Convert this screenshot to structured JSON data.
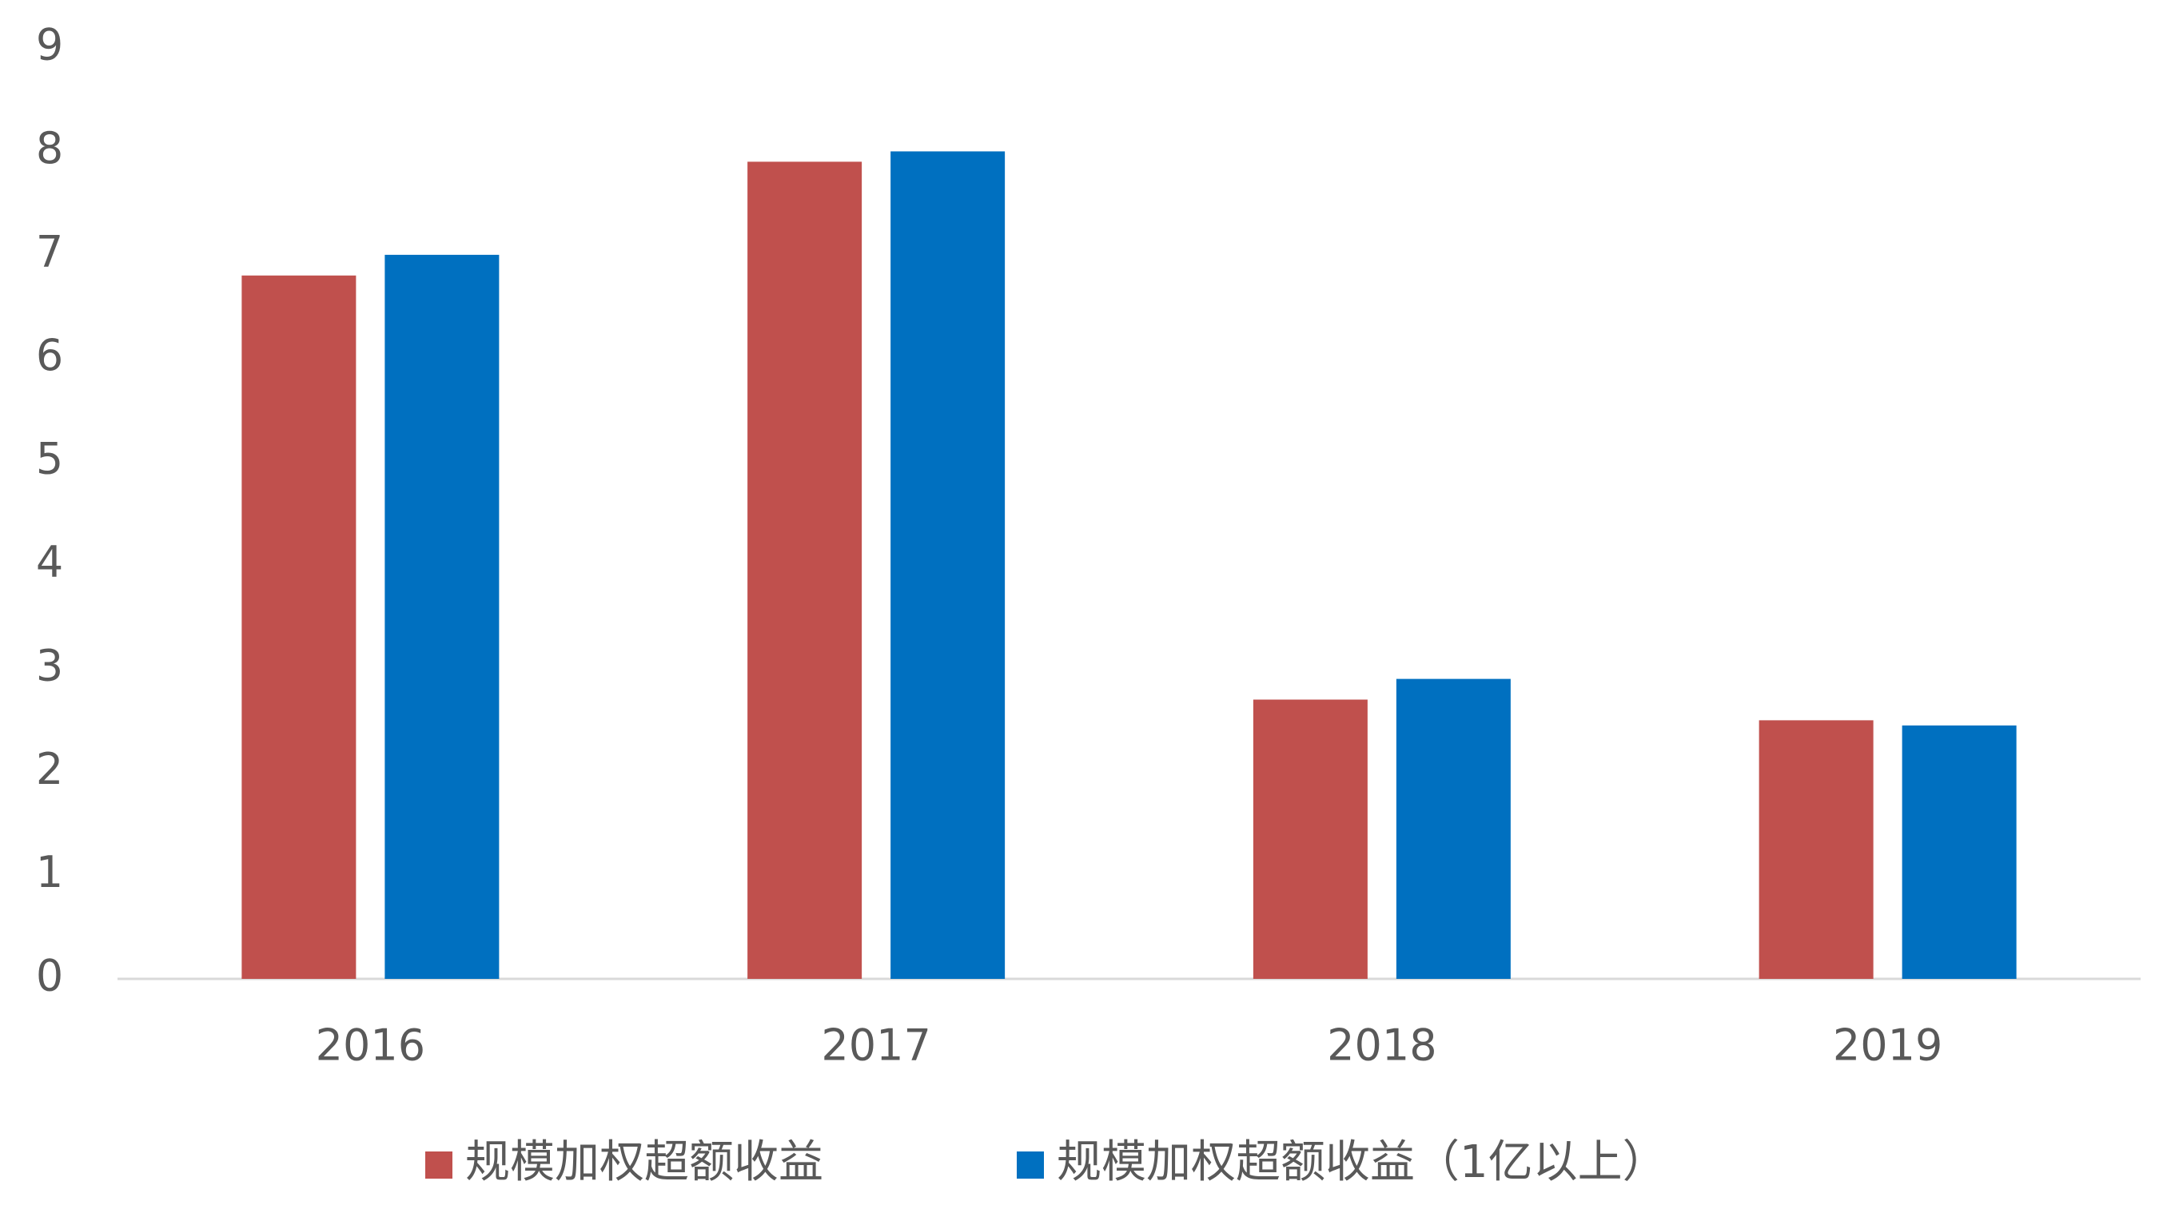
{
  "chart_data": {
    "type": "bar",
    "categories": [
      "2016",
      "2017",
      "2018",
      "2019"
    ],
    "series": [
      {
        "name": "规模加权超额收益",
        "color": "#c0504d",
        "values": [
          6.8,
          7.9,
          2.7,
          2.5
        ]
      },
      {
        "name": "规模加权超额收益（1亿以上）",
        "color": "#0070c0",
        "values": [
          7.0,
          8.0,
          2.9,
          2.45
        ]
      }
    ],
    "ylim": [
      0,
      9
    ],
    "yticks": [
      0,
      1,
      2,
      3,
      4,
      5,
      6,
      7,
      8,
      9
    ],
    "grid": false,
    "legend": "bottom"
  }
}
